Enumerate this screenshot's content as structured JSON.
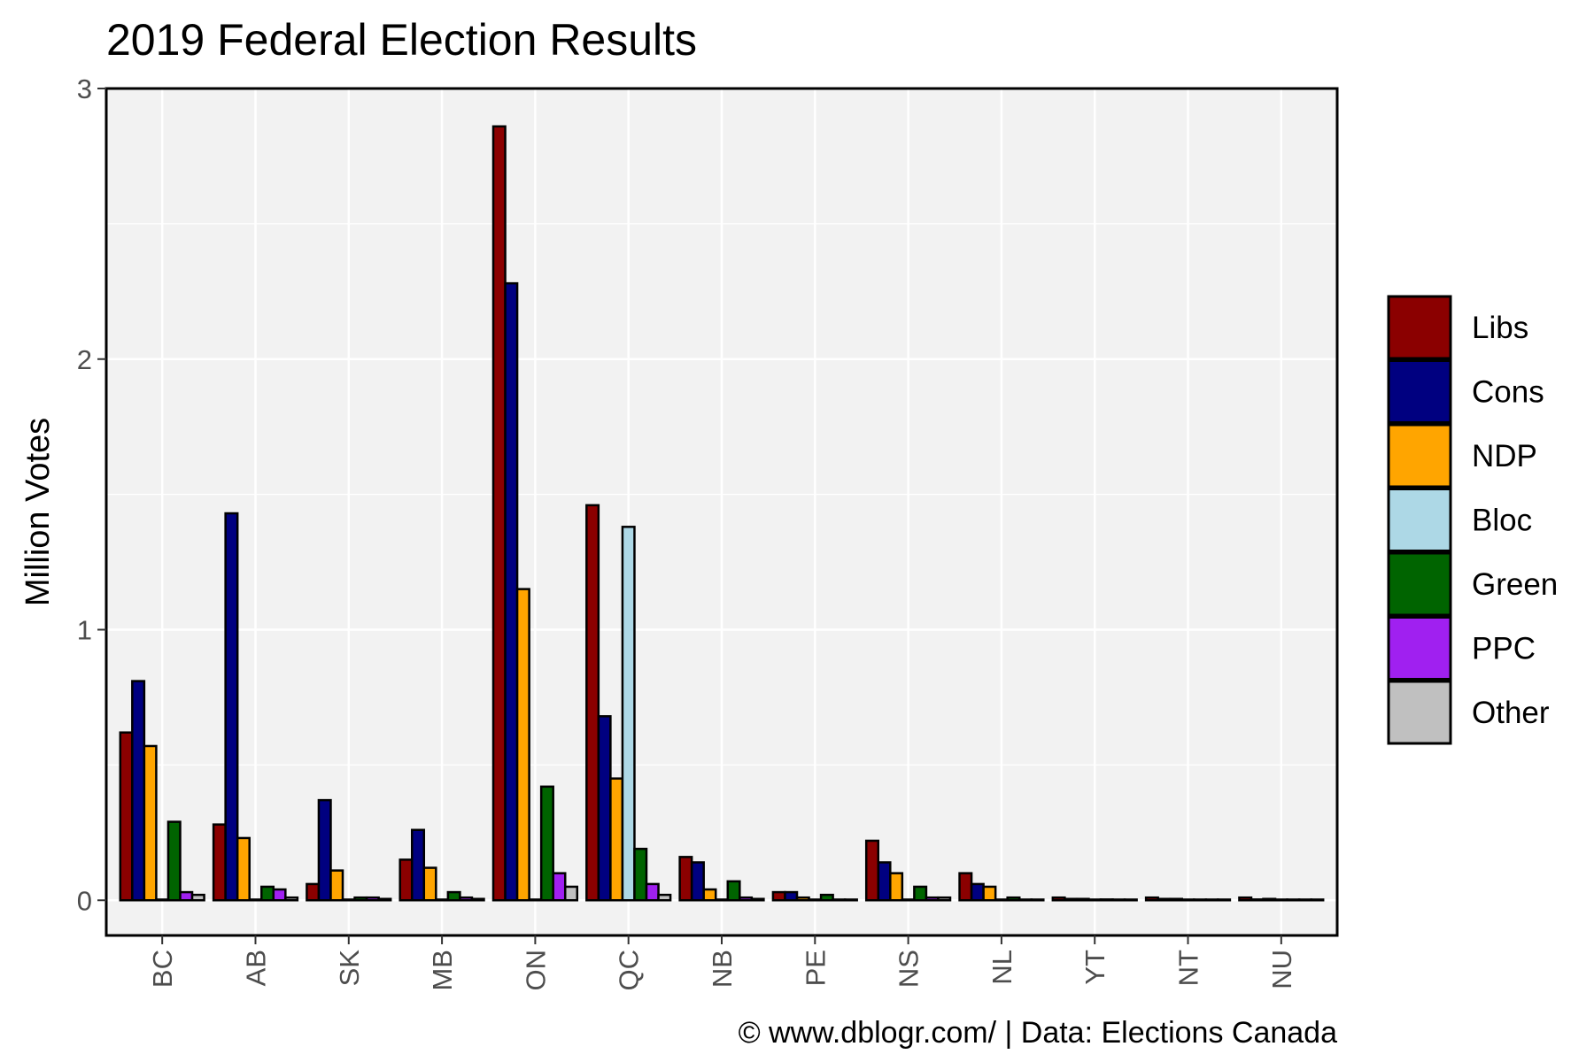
{
  "chart_data": {
    "type": "bar",
    "title": "2019 Federal Election Results",
    "xlabel": "",
    "ylabel": "Million Votes",
    "caption": "© www.dblogr.com/  |  Data: Elections Canada",
    "categories": [
      "BC",
      "AB",
      "SK",
      "MB",
      "ON",
      "QC",
      "NB",
      "PE",
      "NS",
      "NL",
      "YT",
      "NT",
      "NU"
    ],
    "yticks": [
      "0",
      "1",
      "2",
      "3"
    ],
    "ylim": [
      -0.13,
      3.0
    ],
    "grid": true,
    "legend_position": "right",
    "series": [
      {
        "name": "Libs",
        "color": "#8B0000",
        "values": [
          0.62,
          0.28,
          0.06,
          0.15,
          2.86,
          1.46,
          0.16,
          0.03,
          0.22,
          0.1,
          0.01,
          0.01,
          0.01
        ]
      },
      {
        "name": "Cons",
        "color": "#000080",
        "values": [
          0.81,
          1.43,
          0.37,
          0.26,
          2.28,
          0.68,
          0.14,
          0.03,
          0.14,
          0.06,
          0.005,
          0.005,
          0.003
        ]
      },
      {
        "name": "NDP",
        "color": "#FFA500",
        "values": [
          0.57,
          0.23,
          0.11,
          0.12,
          1.15,
          0.45,
          0.04,
          0.01,
          0.1,
          0.05,
          0.005,
          0.005,
          0.005
        ]
      },
      {
        "name": "Bloc",
        "color": "#ADD8E6",
        "values": [
          0,
          0,
          0,
          0,
          0,
          1.38,
          0,
          0,
          0,
          0,
          0,
          0,
          0
        ]
      },
      {
        "name": "Green",
        "color": "#006400",
        "values": [
          0.29,
          0.05,
          0.01,
          0.03,
          0.42,
          0.19,
          0.07,
          0.02,
          0.05,
          0.01,
          0.003,
          0.002,
          0.001
        ]
      },
      {
        "name": "PPC",
        "color": "#A020F0",
        "values": [
          0.03,
          0.04,
          0.01,
          0.01,
          0.1,
          0.06,
          0.01,
          0.002,
          0.01,
          0.002,
          0.0005,
          0.0005,
          0.0003
        ]
      },
      {
        "name": "Other",
        "color": "#C0C0C0",
        "values": [
          0.02,
          0.01,
          0.005,
          0.005,
          0.05,
          0.02,
          0.005,
          0.001,
          0.01,
          0.002,
          0.0005,
          0.0005,
          0.0005
        ]
      }
    ]
  }
}
